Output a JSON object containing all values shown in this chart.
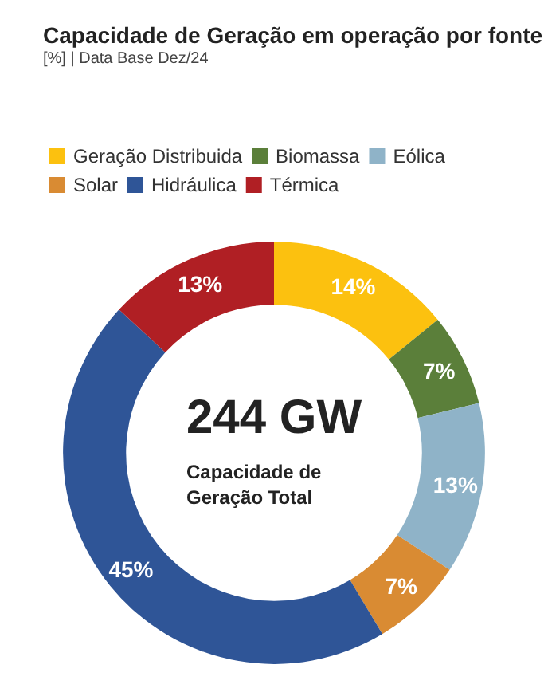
{
  "chart_data": {
    "type": "donut",
    "title": "Capacidade de Geração em operação por fonte",
    "subtitle": "[%] | Data Base Dez/24",
    "categories": [
      "Geração Distribuida",
      "Biomassa",
      "Eólica",
      "Solar",
      "Hidráulica",
      "Térmica"
    ],
    "values": [
      14,
      7,
      13,
      7,
      45,
      13
    ],
    "colors": [
      "#fcc10f",
      "#5b7f3a",
      "#8fb3c8",
      "#d98b33",
      "#2f5597",
      "#b01f24"
    ],
    "value_labels": [
      "14%",
      "7%",
      "13%",
      "7%",
      "45%",
      "13%"
    ],
    "annotations": [
      "244 GW",
      "Capacidade de Geração Total"
    ],
    "legend": "top left"
  }
}
